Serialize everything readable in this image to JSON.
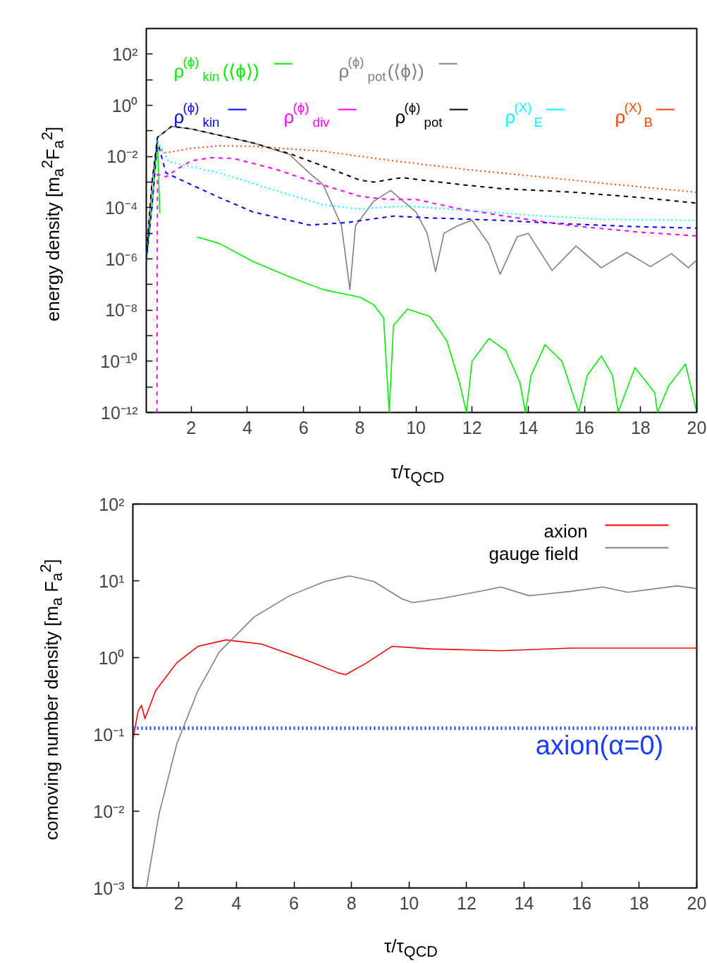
{
  "chart_data": [
    {
      "type": "line",
      "xlabel": "τ/τ$_{QCD}$",
      "ylabel": "energy density [m$_{a}$$^{2}$F$_{a}$$^{2}$]",
      "log": true,
      "legend": "top",
      "xlim": [
        0.4,
        20
      ],
      "ylim": [
        1e-12,
        1000
      ],
      "xticks": [
        2,
        4,
        6,
        8,
        10,
        12,
        14,
        16,
        18,
        20
      ],
      "yticks": [
        {
          "value": 1e-12,
          "label": "10⁻¹²"
        },
        {
          "value": 1e-11,
          "label": null
        },
        {
          "value": 1e-10,
          "label": "10⁻¹⁰"
        },
        {
          "value": 1e-09,
          "label": null
        },
        {
          "value": 1e-08,
          "label": "10⁻⁸"
        },
        {
          "value": 1e-07,
          "label": null
        },
        {
          "value": 1e-06,
          "label": "10⁻⁶"
        },
        {
          "value": 1e-05,
          "label": null
        },
        {
          "value": 0.0001,
          "label": "10⁻⁴"
        },
        {
          "value": 0.001,
          "label": null
        },
        {
          "value": 0.01,
          "label": "10⁻²"
        },
        {
          "value": 0.1,
          "label": null
        },
        {
          "value": 1,
          "label": "10⁰"
        },
        {
          "value": 10,
          "label": null
        },
        {
          "value": 100,
          "label": "10²"
        }
      ],
      "series": [
        {
          "name": "ρ$^{(ϕ)}$$_{kin}$(⟨ϕ⟩)",
          "color": "#00ee00",
          "line_style": "solid",
          "x": [
            0.4,
            0.6,
            0.8,
            0.88,
            1.0,
            2.2,
            3,
            4.2,
            5.5,
            6.7,
            8,
            8.5,
            8.85,
            9.05,
            9.2,
            9.7,
            10.5,
            11.1,
            11.55,
            11.8,
            12.0,
            12.6,
            13.2,
            13.7,
            13.9,
            14.1,
            14.6,
            15.2,
            15.7,
            15.8,
            16.1,
            16.6,
            17.0,
            17.2,
            17.6,
            17.8,
            18.5,
            18.6,
            19.0,
            19.6,
            20
          ],
          "values": [
            7.9e-07,
            0.0001,
            0.04,
            6.3e-05,
            null,
            7.2e-06,
            4e-06,
            7.9e-07,
            2e-07,
            6.3e-08,
            3.2e-08,
            1.6e-08,
            5e-09,
            1e-12,
            2.5e-09,
            1.1e-08,
            5.6e-09,
            6.3e-10,
            1.5e-11,
            1e-12,
            1e-10,
            7.8e-10,
            2.6e-10,
            1.5e-11,
            1e-12,
            2.8e-11,
            4.4e-10,
            1e-10,
            2.2e-12,
            1e-12,
            2.8e-11,
            1.6e-10,
            2.8e-11,
            1e-12,
            1.5e-11,
            5.6e-11,
            6e-12,
            1e-12,
            1.1e-11,
            7.8e-11,
            1e-12
          ]
        },
        {
          "name": "ρ$^{(ϕ)}$$_{pot}$(⟨ϕ⟩)",
          "color": "#808080",
          "line_style": "solid",
          "x": [
            0.4,
            0.6,
            0.8,
            1.3,
            2,
            3,
            4.2,
            5.5,
            6.2,
            6.7,
            7.35,
            7.65,
            7.85,
            8.5,
            9.1,
            10,
            10.4,
            10.7,
            11.0,
            11.5,
            12,
            12.6,
            13,
            13.6,
            14,
            14.85,
            15.7,
            16.6,
            17.5,
            18.35,
            19.1,
            19.7,
            20
          ],
          "values": [
            1.1e-06,
            0.00087,
            0.056,
            0.15,
            0.12,
            0.068,
            0.034,
            0.012,
            0.0023,
            0.00078,
            2e-05,
            6.3e-08,
            2e-05,
            0.00018,
            0.00047,
            6.8e-05,
            1e-05,
            3.2e-07,
            1e-05,
            2e-05,
            3.2e-05,
            3.8e-06,
            2.5e-07,
            7.2e-06,
            1e-05,
            3.5e-07,
            3.2e-06,
            4.5e-07,
            1.8e-06,
            5e-07,
            1.6e-06,
            4.5e-07,
            9e-07
          ]
        },
        {
          "name": "ρ$^{(ϕ)}$$_{kin}$",
          "color": "#0000ff",
          "line_style": "dashed",
          "x": [
            0.4,
            0.6,
            0.8,
            1.1,
            2,
            3,
            4.2,
            5.5,
            6.2,
            7.5,
            9.2,
            10.5,
            13,
            15.5,
            18,
            20
          ],
          "values": [
            7.9e-07,
            0.0001,
            0.04,
            0.0023,
            0.00079,
            0.00025,
            6.8e-05,
            3.2e-05,
            2.1e-05,
            2.6e-05,
            4.7e-05,
            4e-05,
            3.2e-05,
            2.3e-05,
            1.8e-05,
            1.6e-05
          ]
        },
        {
          "name": "ρ$^{(ϕ)}$$_{div}$",
          "color": "#ff00ff",
          "line_style": "dashed",
          "x": [
            0.78,
            0.8,
            1.1,
            1.5,
            2,
            2.7,
            3.5,
            5,
            6.5,
            8,
            9,
            10,
            11.5,
            13,
            15.5,
            18,
            20
          ],
          "values": [
            1e-12,
            0.002,
            0.0016,
            0.0032,
            0.0068,
            0.0089,
            0.0085,
            0.0032,
            0.00089,
            0.00028,
            0.00021,
            0.00021,
            9.3e-05,
            5e-05,
            2e-05,
            1.1e-05,
            7.9e-06
          ]
        },
        {
          "name": "ρ$^{(ϕ)}$$_{pot}$",
          "color": "#000000",
          "line_style": "dashed",
          "x": [
            0.4,
            0.6,
            0.8,
            1.3,
            2,
            3,
            4.2,
            5.5,
            7,
            8,
            8.5,
            9.5,
            10.5,
            11.7,
            13,
            15.5,
            18,
            20
          ],
          "values": [
            1.1e-06,
            0.00087,
            0.056,
            0.15,
            0.12,
            0.068,
            0.034,
            0.013,
            0.0032,
            0.0012,
            0.001,
            0.0015,
            0.0011,
            0.00078,
            0.00056,
            0.00041,
            0.00025,
            0.00015
          ]
        },
        {
          "name": "ρ$^{(X)}$$_{E}$",
          "color": "#00ffff",
          "line_style": "dotted",
          "x": [
            0.8,
            1.2,
            2,
            3,
            5,
            6.7,
            8,
            9.2,
            10,
            11.7,
            14.2,
            16.7,
            20
          ],
          "values": [
            0.04,
            0.0063,
            0.004,
            0.0023,
            0.00047,
            0.00013,
            8.9e-05,
            0.00011,
            0.00011,
            7.9e-05,
            5e-05,
            3.5e-05,
            3.2e-05
          ]
        },
        {
          "name": "ρ$^{(X)}$$_{B}$",
          "color": "#ff4500",
          "line_style": "dotted",
          "x": [
            0.8,
            1.1,
            2,
            3,
            4.2,
            6.7,
            9.2,
            11.7,
            14.2,
            16.7,
            20
          ],
          "values": [
            0.021,
            0.014,
            0.021,
            0.026,
            0.025,
            0.016,
            0.0068,
            0.0032,
            0.0017,
            0.00089,
            0.0004
          ]
        }
      ]
    },
    {
      "type": "line",
      "xlabel": "τ/τ$_{QCD}$",
      "ylabel": "comoving number density [m$_{a}$ F$_{a}$$^{2}$]",
      "log": true,
      "legend": "top right",
      "xlim": [
        0.4,
        20
      ],
      "ylim": [
        0.001,
        100
      ],
      "xticks": [
        2,
        4,
        6,
        8,
        10,
        12,
        14,
        16,
        18,
        20
      ],
      "yticks": [
        {
          "value": 0.001,
          "label": "10⁻³"
        },
        {
          "value": 0.01,
          "label": "10⁻²"
        },
        {
          "value": 0.1,
          "label": "10⁻¹"
        },
        {
          "value": 1,
          "label": "10⁰"
        },
        {
          "value": 10,
          "label": "10¹"
        },
        {
          "value": 100,
          "label": "10²"
        }
      ],
      "ref_lines": [
        {
          "axis": "y",
          "value": 0.12,
          "label": "axion(α=0)",
          "color": "#1a3cff",
          "line_style": "dotted"
        }
      ],
      "series": [
        {
          "name": "axion",
          "color": "#ff0000",
          "line_style": "solid",
          "x": [
            0.4,
            0.58,
            0.7,
            0.82,
            1.19,
            1.93,
            2.66,
            3.64,
            4.87,
            6.33,
            7.56,
            7.8,
            8.54,
            9.4,
            10.74,
            13.19,
            15.64,
            20
          ],
          "values": [
            0.084,
            0.2,
            0.24,
            0.16,
            0.37,
            0.86,
            1.4,
            1.7,
            1.5,
            0.96,
            0.63,
            0.6,
            0.86,
            1.4,
            1.3,
            1.23,
            1.33,
            1.33
          ]
        },
        {
          "name": "gauge field",
          "color": "#808080",
          "line_style": "solid",
          "x": [
            0.87,
            1.31,
            1.93,
            2.66,
            3.4,
            4.62,
            5.85,
            7.07,
            7.93,
            8.78,
            9.76,
            10.13,
            11.23,
            12.7,
            13.19,
            14.17,
            15.64,
            16.74,
            17.6,
            19.32,
            20
          ],
          "values": [
            0.001,
            0.0092,
            0.076,
            0.37,
            1.18,
            3.4,
            6.4,
            9.8,
            11.6,
            9.8,
            5.8,
            5.2,
            6.0,
            7.6,
            8.3,
            6.4,
            7.3,
            8.3,
            7.1,
            8.6,
            7.9
          ]
        }
      ]
    }
  ]
}
